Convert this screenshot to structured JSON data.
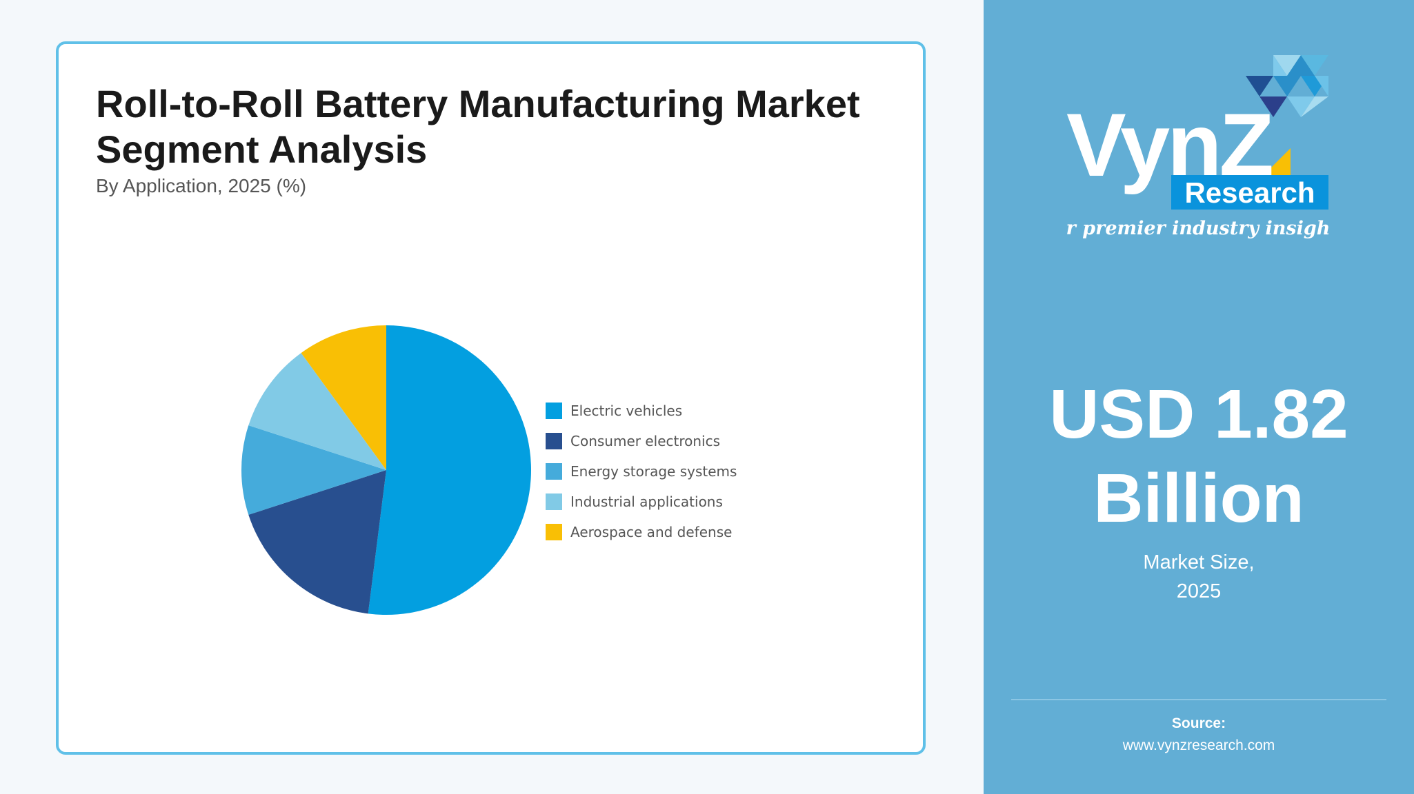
{
  "card": {
    "title": "Roll-to-Roll Battery Manufacturing Market Segment Analysis",
    "subtitle": "By Application, 2025 (%)"
  },
  "chart_data": {
    "type": "pie",
    "title": "Roll-to-Roll Battery Manufacturing Market Segment Analysis",
    "subtitle": "By Application, 2025 (%)",
    "categories": [
      "Electric vehicles",
      "Consumer electronics",
      "Energy storage systems",
      "Industrial applications",
      "Aerospace and defense"
    ],
    "values": [
      52,
      18,
      10,
      10,
      10
    ],
    "colors": [
      "#039fe0",
      "#284f8f",
      "#45abdb",
      "#81cae6",
      "#f9bf05"
    ],
    "legend_position": "right"
  },
  "side": {
    "logo": {
      "wordmark": "VynZ",
      "badge": "Research",
      "tagline": "for premier industry insights"
    },
    "market_value": "USD 1.82 Billion",
    "market_caption_line1": "Market Size,",
    "market_caption_line2": "2025",
    "source_label": "Source:",
    "source_url": "www.vynzresearch.com",
    "background_color": "#62aed5"
  }
}
